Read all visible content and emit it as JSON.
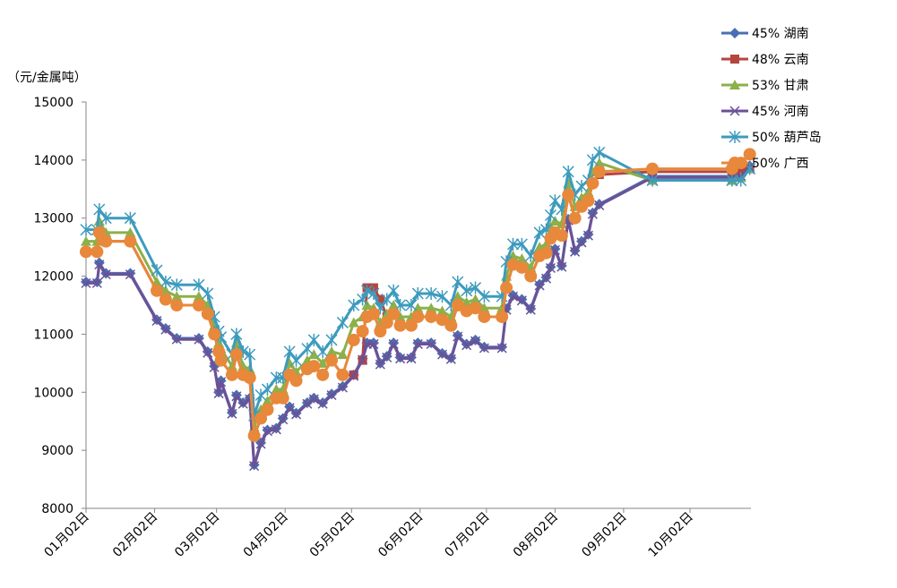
{
  "chart_data": {
    "type": "line",
    "title": "",
    "ylabel": "（元/金属吨）",
    "xlabel": "",
    "ylim": [
      8000,
      15000
    ],
    "yticks": [
      8000,
      9000,
      10000,
      11000,
      12000,
      13000,
      14000,
      15000
    ],
    "xticks": [
      "01月02日",
      "02月02日",
      "03月02日",
      "04月02日",
      "05月02日",
      "06月02日",
      "07月02日",
      "08月02日",
      "09月02日",
      "10月02日"
    ],
    "xtick_dates": [
      "01-02",
      "02-02",
      "03-02",
      "04-02",
      "05-02",
      "06-02",
      "07-02",
      "08-02",
      "09-02",
      "10-02"
    ],
    "xlim": [
      "01-02",
      "10-30"
    ],
    "grid": false,
    "legend_position": "top-right",
    "x": [
      "01-02",
      "01-07",
      "01-08",
      "01-11",
      "01-22",
      "02-03",
      "02-07",
      "02-12",
      "02-22",
      "02-26",
      "03-01",
      "03-03",
      "03-04",
      "03-09",
      "03-11",
      "03-14",
      "03-17",
      "03-19",
      "03-22",
      "03-25",
      "03-29",
      "04-01",
      "04-04",
      "04-07",
      "04-12",
      "04-15",
      "04-19",
      "04-23",
      "04-28",
      "05-03",
      "05-07",
      "05-09",
      "05-12",
      "05-15",
      "05-18",
      "05-21",
      "05-24",
      "05-29",
      "06-01",
      "06-07",
      "06-12",
      "06-16",
      "06-19",
      "06-23",
      "06-27",
      "07-01",
      "07-09",
      "07-11",
      "07-14",
      "07-18",
      "07-22",
      "07-26",
      "07-29",
      "07-31",
      "08-02",
      "08-05",
      "08-08",
      "08-11",
      "08-14",
      "08-17",
      "08-19",
      "08-22",
      "09-15",
      "10-21",
      "10-25",
      "10-29"
    ],
    "series": [
      {
        "name": "45% 湖南",
        "color": "#4a6fb0",
        "marker": "diamond",
        "values": [
          11900,
          11900,
          12230,
          12050,
          12050,
          11250,
          11100,
          10930,
          10930,
          10700,
          10450,
          10000,
          10200,
          9650,
          9950,
          9820,
          9900,
          8750,
          9130,
          9350,
          9380,
          9550,
          9750,
          9640,
          9820,
          9900,
          9820,
          9970,
          10100,
          10300,
          10580,
          10850,
          10850,
          10500,
          10620,
          10850,
          10600,
          10600,
          10850,
          10850,
          10670,
          10590,
          10980,
          10830,
          10900,
          10780,
          10780,
          11440,
          11670,
          11600,
          11440,
          11860,
          11980,
          12160,
          12470,
          12180,
          12980,
          12440,
          12600,
          12720,
          13090,
          13240,
          13720,
          13720,
          13750,
          13900
        ]
      },
      {
        "name": "48% 云南",
        "color": "#b5453f",
        "marker": "square",
        "values": [
          12420,
          12420,
          12750,
          12600,
          12600,
          11750,
          11600,
          11500,
          11500,
          11350,
          11000,
          10700,
          10550,
          10300,
          10650,
          10300,
          10250,
          9250,
          9550,
          9700,
          9900,
          9900,
          10300,
          10200,
          10400,
          10450,
          10300,
          10550,
          10300,
          10300,
          10550,
          11800,
          11800,
          11600,
          11300,
          11350,
          11150,
          11150,
          11300,
          11300,
          11250,
          11150,
          11500,
          11400,
          11450,
          11300,
          11300,
          11800,
          12200,
          12150,
          12000,
          12350,
          12400,
          12650,
          12750,
          12700,
          13400,
          13000,
          13200,
          13300,
          13600,
          13750,
          13800,
          13800,
          13800,
          13850
        ]
      },
      {
        "name": "53% 甘肃",
        "color": "#8cb04a",
        "marker": "triangle",
        "values": [
          12600,
          12600,
          12950,
          12750,
          12750,
          11900,
          11750,
          11650,
          11650,
          11500,
          11150,
          10850,
          10750,
          10450,
          10850,
          10450,
          10400,
          9400,
          9700,
          9850,
          10050,
          10050,
          10500,
          10350,
          10550,
          10650,
          10500,
          10700,
          10650,
          11200,
          11300,
          11500,
          11450,
          11200,
          11350,
          11500,
          11300,
          11300,
          11450,
          11450,
          11400,
          11300,
          11650,
          11550,
          11600,
          11450,
          11450,
          12000,
          12350,
          12300,
          12150,
          12500,
          12550,
          12850,
          12950,
          12900,
          13600,
          13200,
          13350,
          13450,
          13800,
          13950,
          13650,
          13650,
          13700,
          13850
        ]
      },
      {
        "name": "45% 河南",
        "color": "#6c5197",
        "marker": "x",
        "values": [
          11880,
          11880,
          12200,
          12030,
          12030,
          11230,
          11080,
          10910,
          10910,
          10680,
          10430,
          9980,
          10180,
          9630,
          9930,
          9800,
          9880,
          8730,
          9110,
          9330,
          9360,
          9530,
          9730,
          9620,
          9800,
          9880,
          9800,
          9950,
          10080,
          10280,
          10560,
          10830,
          10830,
          10480,
          10600,
          10830,
          10580,
          10580,
          10830,
          10830,
          10650,
          10570,
          10960,
          10810,
          10880,
          10760,
          10760,
          11420,
          11650,
          11580,
          11420,
          11840,
          11960,
          12140,
          12450,
          12160,
          12960,
          12420,
          12580,
          12700,
          13070,
          13220,
          13700,
          13700,
          13730,
          13880
        ]
      },
      {
        "name": "50% 葫芦岛",
        "color": "#3d9bbd",
        "marker": "asterisk",
        "values": [
          12800,
          12800,
          13150,
          13000,
          13000,
          12100,
          11900,
          11850,
          11850,
          11700,
          11300,
          11050,
          10950,
          10650,
          11000,
          10700,
          10650,
          9600,
          9950,
          10050,
          10250,
          10250,
          10700,
          10550,
          10750,
          10900,
          10700,
          10900,
          11200,
          11500,
          11600,
          11750,
          11700,
          11450,
          11600,
          11750,
          11500,
          11500,
          11700,
          11700,
          11650,
          11500,
          11900,
          11750,
          11800,
          11650,
          11650,
          12250,
          12550,
          12550,
          12350,
          12750,
          12800,
          13050,
          13300,
          13150,
          13800,
          13400,
          13550,
          13650,
          14000,
          14130,
          13650,
          13650,
          13650,
          13850
        ]
      },
      {
        "name": "50% 广西",
        "color": "#e8883a",
        "marker": "circle",
        "values": [
          12420,
          12420,
          12750,
          12600,
          12600,
          11750,
          11600,
          11500,
          11500,
          11350,
          11000,
          10700,
          10550,
          10300,
          10650,
          10300,
          10250,
          9250,
          9550,
          9700,
          9900,
          9900,
          10300,
          10200,
          10400,
          10450,
          10300,
          10550,
          10300,
          10900,
          11050,
          11300,
          11350,
          11050,
          11200,
          11350,
          11150,
          11150,
          11300,
          11300,
          11250,
          11150,
          11500,
          11400,
          11450,
          11300,
          11300,
          11800,
          12200,
          12150,
          12000,
          12350,
          12400,
          12650,
          12750,
          12700,
          13400,
          13000,
          13200,
          13300,
          13600,
          13800,
          13850,
          13850,
          13950,
          14100
        ]
      }
    ]
  }
}
